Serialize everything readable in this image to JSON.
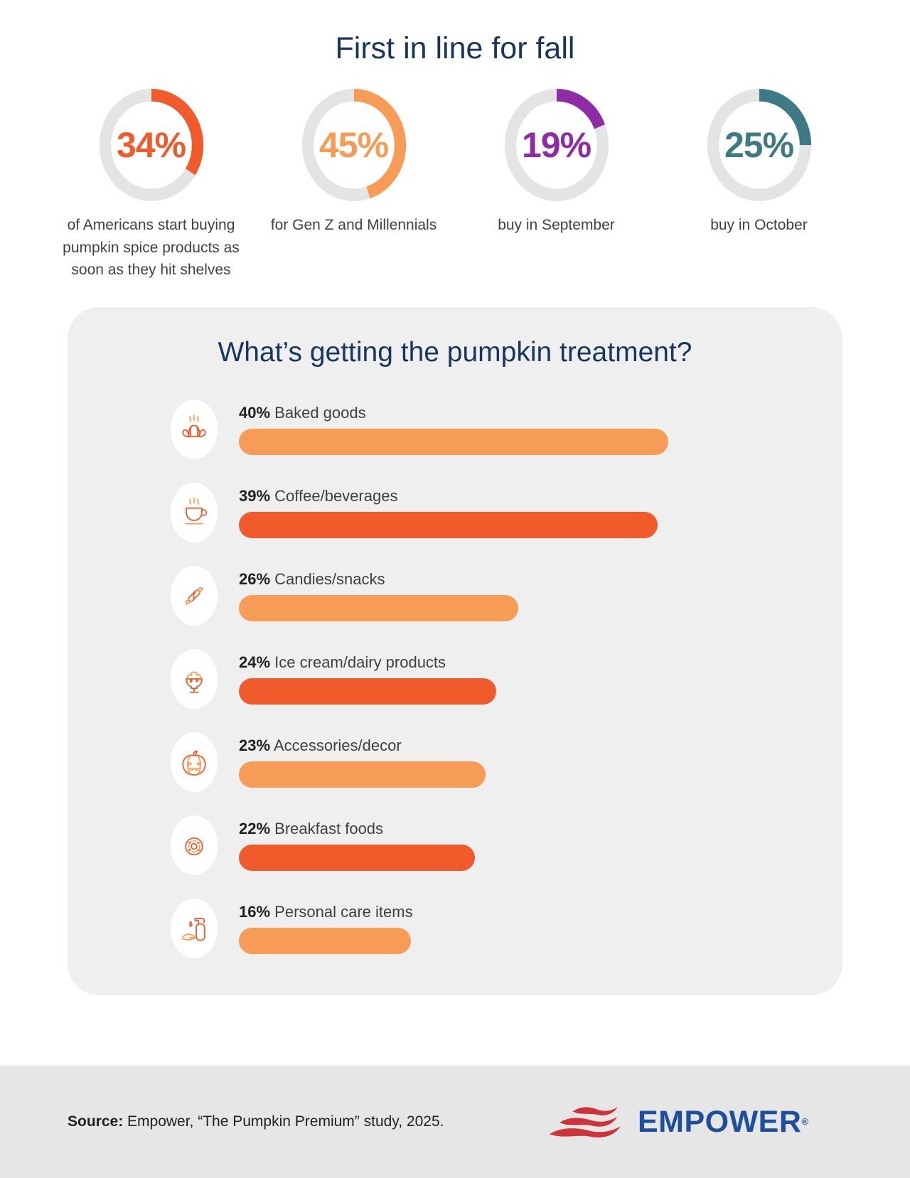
{
  "title": "First in line for fall",
  "chart_data": [
    {
      "type": "pie",
      "subtype": "donut_gauges",
      "title": "First in line for fall",
      "track_color": "#E4E4E4",
      "items": [
        {
          "value": 34,
          "label": "34%",
          "caption": "of Americans start buying pumpkin spice products as soon as they hit shelves",
          "color": "#F15A2B"
        },
        {
          "value": 45,
          "label": "45%",
          "caption": "for Gen Z and Millennials",
          "color": "#F79C56"
        },
        {
          "value": 19,
          "label": "19%",
          "caption": "buy in September",
          "color": "#8E2BA6"
        },
        {
          "value": 25,
          "label": "25%",
          "caption": "buy in October",
          "color": "#3D7A83"
        }
      ]
    },
    {
      "type": "bar",
      "orientation": "horizontal",
      "title": "What’s getting the pumpkin treatment?",
      "xlim": [
        0,
        40
      ],
      "items": [
        {
          "value": 40,
          "value_label": "40%",
          "category": "Baked goods",
          "icon": "croissant-icon",
          "bar_color": "#F79C56"
        },
        {
          "value": 39,
          "value_label": "39%",
          "category": "Coffee/beverages",
          "icon": "coffee-cup-icon",
          "bar_color": "#F15A2B"
        },
        {
          "value": 26,
          "value_label": "26%",
          "category": "Candies/snacks",
          "icon": "candy-icon",
          "bar_color": "#F79C56"
        },
        {
          "value": 24,
          "value_label": "24%",
          "category": "Ice cream/dairy products",
          "icon": "ice-cream-sundae-icon",
          "bar_color": "#F15A2B"
        },
        {
          "value": 23,
          "value_label": "23%",
          "category": "Accessories/decor",
          "icon": "jack-o-lantern-icon",
          "bar_color": "#F79C56"
        },
        {
          "value": 22,
          "value_label": "22%",
          "category": "Breakfast foods",
          "icon": "donut-icon",
          "bar_color": "#F15A2B"
        },
        {
          "value": 16,
          "value_label": "16%",
          "category": "Personal care items",
          "icon": "hand-soap-icon",
          "bar_color": "#F79C56"
        }
      ]
    }
  ],
  "footer": {
    "source_label": "Source:",
    "source_text": " Empower, “The Pumpkin Premium” study, 2025.",
    "logo_text": "EMPOWER",
    "logo_registered": "®",
    "logo_text_color": "#1E4F9C",
    "logo_wave_color": "#CE333B"
  }
}
